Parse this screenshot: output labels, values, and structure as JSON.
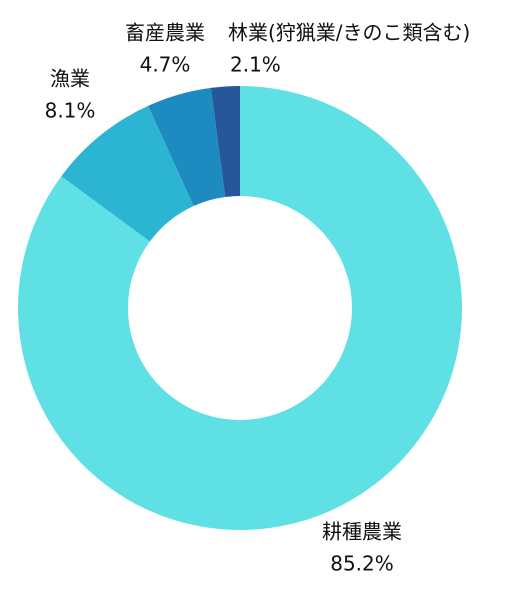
{
  "chart_data": {
    "type": "pie",
    "categories": [
      "耕種農業",
      "漁業",
      "畜産農業",
      "林業(狩猟業/きのこ類含む)"
    ],
    "series": [
      {
        "values": [
          85.2,
          8.1,
          4.7,
          2.1
        ],
        "value_labels": [
          "85.2%",
          "8.1%",
          "4.7%",
          "2.1%"
        ],
        "colors": [
          "#5ee0e5",
          "#2bb5d3",
          "#1d8bbf",
          "#26579a"
        ]
      }
    ],
    "donut": true
  }
}
